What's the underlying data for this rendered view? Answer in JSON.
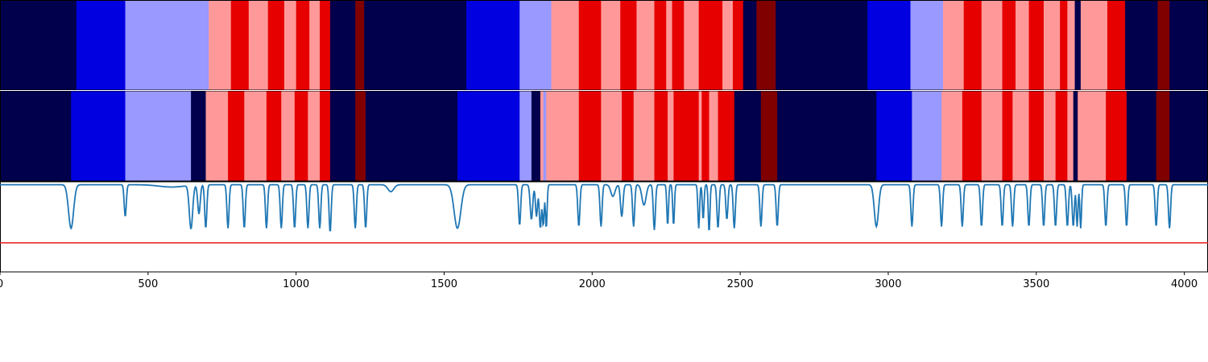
{
  "chart_data": {
    "type": "heatmap",
    "xlim": [
      0,
      4080
    ],
    "x_ticks": [
      0,
      500,
      1000,
      1500,
      2000,
      2500,
      3000,
      3500,
      4000
    ],
    "x_tick_labels": [
      "0",
      "500",
      "1000",
      "1500",
      "2000",
      "2500",
      "3000",
      "3500",
      "4000"
    ],
    "class_colors": {
      "0": "#00004c",
      "1": "#0000e0",
      "2": "#9999ff",
      "3": "#ff9999",
      "4": "#e60000",
      "5": "#800000"
    },
    "tracks": [
      {
        "segments": [
          [
            0,
            258,
            0
          ],
          [
            258,
            423,
            1
          ],
          [
            423,
            705,
            2
          ],
          [
            705,
            780,
            3
          ],
          [
            780,
            840,
            4
          ],
          [
            840,
            905,
            3
          ],
          [
            905,
            960,
            4
          ],
          [
            960,
            1000,
            3
          ],
          [
            1000,
            1045,
            4
          ],
          [
            1045,
            1080,
            3
          ],
          [
            1080,
            1115,
            4
          ],
          [
            1115,
            1200,
            0
          ],
          [
            1200,
            1230,
            5
          ],
          [
            1230,
            1575,
            0
          ],
          [
            1575,
            1755,
            1
          ],
          [
            1755,
            1862,
            2
          ],
          [
            1862,
            1955,
            3
          ],
          [
            1955,
            2030,
            4
          ],
          [
            2030,
            2095,
            3
          ],
          [
            2095,
            2150,
            4
          ],
          [
            2150,
            2210,
            3
          ],
          [
            2210,
            2250,
            4
          ],
          [
            2250,
            2270,
            3
          ],
          [
            2270,
            2310,
            4
          ],
          [
            2310,
            2360,
            3
          ],
          [
            2360,
            2440,
            4
          ],
          [
            2440,
            2475,
            3
          ],
          [
            2475,
            2510,
            4
          ],
          [
            2510,
            2555,
            0
          ],
          [
            2555,
            2620,
            5
          ],
          [
            2620,
            2930,
            0
          ],
          [
            2930,
            3075,
            1
          ],
          [
            3075,
            3185,
            2
          ],
          [
            3185,
            3255,
            3
          ],
          [
            3255,
            3315,
            4
          ],
          [
            3315,
            3385,
            3
          ],
          [
            3385,
            3430,
            4
          ],
          [
            3430,
            3475,
            3
          ],
          [
            3475,
            3525,
            4
          ],
          [
            3525,
            3580,
            3
          ],
          [
            3580,
            3605,
            4
          ],
          [
            3605,
            3630,
            3
          ],
          [
            3630,
            3650,
            0
          ],
          [
            3650,
            3740,
            3
          ],
          [
            3740,
            3800,
            4
          ],
          [
            3800,
            3910,
            0
          ],
          [
            3910,
            3950,
            5
          ],
          [
            3950,
            4080,
            0
          ]
        ]
      },
      {
        "segments": [
          [
            0,
            240,
            0
          ],
          [
            240,
            423,
            1
          ],
          [
            423,
            645,
            2
          ],
          [
            645,
            695,
            0
          ],
          [
            695,
            770,
            3
          ],
          [
            770,
            825,
            4
          ],
          [
            825,
            900,
            3
          ],
          [
            900,
            950,
            4
          ],
          [
            950,
            995,
            3
          ],
          [
            995,
            1040,
            4
          ],
          [
            1040,
            1080,
            3
          ],
          [
            1080,
            1115,
            4
          ],
          [
            1115,
            1200,
            0
          ],
          [
            1200,
            1235,
            5
          ],
          [
            1235,
            1545,
            0
          ],
          [
            1545,
            1755,
            1
          ],
          [
            1755,
            1795,
            2
          ],
          [
            1795,
            1825,
            0
          ],
          [
            1825,
            1835,
            3
          ],
          [
            1835,
            1845,
            2
          ],
          [
            1845,
            1955,
            3
          ],
          [
            1955,
            2030,
            4
          ],
          [
            2030,
            2100,
            3
          ],
          [
            2100,
            2140,
            4
          ],
          [
            2140,
            2210,
            3
          ],
          [
            2210,
            2255,
            4
          ],
          [
            2255,
            2275,
            3
          ],
          [
            2275,
            2360,
            4
          ],
          [
            2360,
            2370,
            3
          ],
          [
            2370,
            2395,
            4
          ],
          [
            2395,
            2425,
            3
          ],
          [
            2425,
            2480,
            4
          ],
          [
            2480,
            2570,
            0
          ],
          [
            2570,
            2625,
            5
          ],
          [
            2625,
            2960,
            0
          ],
          [
            2960,
            3080,
            1
          ],
          [
            3080,
            3180,
            2
          ],
          [
            3180,
            3250,
            3
          ],
          [
            3250,
            3315,
            4
          ],
          [
            3315,
            3385,
            3
          ],
          [
            3385,
            3420,
            4
          ],
          [
            3420,
            3475,
            3
          ],
          [
            3475,
            3525,
            4
          ],
          [
            3525,
            3565,
            3
          ],
          [
            3565,
            3605,
            4
          ],
          [
            3605,
            3625,
            3
          ],
          [
            3625,
            3640,
            0
          ],
          [
            3640,
            3735,
            3
          ],
          [
            3735,
            3805,
            4
          ],
          [
            3805,
            3905,
            0
          ],
          [
            3905,
            3950,
            5
          ],
          [
            3950,
            4080,
            0
          ]
        ]
      }
    ],
    "line_panel": {
      "ylim": [
        -1.5,
        0.05
      ],
      "threshold": -1,
      "series_color": "#1f77b4",
      "threshold_color": "#e41a1c",
      "baseline": 0,
      "dips": [
        [
          240,
          -0.75,
          12
        ],
        [
          423,
          -0.55,
          5
        ],
        [
          580,
          -0.04,
          60
        ],
        [
          645,
          -0.75,
          8
        ],
        [
          672,
          -0.5,
          6
        ],
        [
          695,
          -0.75,
          5
        ],
        [
          770,
          -0.75,
          5
        ],
        [
          825,
          -0.75,
          5
        ],
        [
          900,
          -0.75,
          5
        ],
        [
          950,
          -0.75,
          5
        ],
        [
          995,
          -0.75,
          5
        ],
        [
          1040,
          -0.75,
          5
        ],
        [
          1080,
          -0.75,
          5
        ],
        [
          1115,
          -0.82,
          5
        ],
        [
          1200,
          -0.75,
          5
        ],
        [
          1235,
          -0.75,
          5
        ],
        [
          1320,
          -0.12,
          14
        ],
        [
          1545,
          -0.75,
          16
        ],
        [
          1755,
          -0.7,
          5
        ],
        [
          1795,
          -0.6,
          6
        ],
        [
          1812,
          -0.55,
          5
        ],
        [
          1825,
          -0.75,
          5
        ],
        [
          1835,
          -0.7,
          4
        ],
        [
          1845,
          -0.75,
          4
        ],
        [
          1955,
          -0.72,
          5
        ],
        [
          2030,
          -0.72,
          5
        ],
        [
          2070,
          -0.2,
          10
        ],
        [
          2100,
          -0.55,
          6
        ],
        [
          2140,
          -0.72,
          5
        ],
        [
          2175,
          -0.35,
          10
        ],
        [
          2210,
          -0.78,
          5
        ],
        [
          2255,
          -0.7,
          4
        ],
        [
          2275,
          -0.7,
          4
        ],
        [
          2360,
          -0.75,
          4
        ],
        [
          2375,
          -0.6,
          4
        ],
        [
          2395,
          -0.82,
          4
        ],
        [
          2425,
          -0.75,
          5
        ],
        [
          2455,
          -0.6,
          5
        ],
        [
          2480,
          -0.75,
          5
        ],
        [
          2570,
          -0.72,
          5
        ],
        [
          2625,
          -0.72,
          5
        ],
        [
          2960,
          -0.72,
          10
        ],
        [
          3080,
          -0.72,
          5
        ],
        [
          3180,
          -0.72,
          5
        ],
        [
          3250,
          -0.72,
          5
        ],
        [
          3315,
          -0.72,
          5
        ],
        [
          3385,
          -0.72,
          5
        ],
        [
          3420,
          -0.72,
          5
        ],
        [
          3475,
          -0.72,
          5
        ],
        [
          3525,
          -0.72,
          5
        ],
        [
          3565,
          -0.72,
          5
        ],
        [
          3605,
          -0.72,
          5
        ],
        [
          3625,
          -0.72,
          5
        ],
        [
          3638,
          -0.72,
          4
        ],
        [
          3650,
          -0.75,
          4
        ],
        [
          3735,
          -0.72,
          5
        ],
        [
          3805,
          -0.72,
          5
        ],
        [
          3905,
          -0.72,
          5
        ],
        [
          3950,
          -0.75,
          5
        ]
      ]
    }
  }
}
